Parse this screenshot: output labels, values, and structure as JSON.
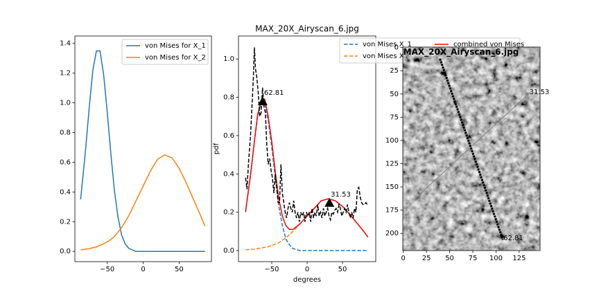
{
  "chart_data": [
    {
      "type": "line",
      "x": [
        -87,
        -80,
        -75,
        -70,
        -65,
        -60,
        -55,
        -50,
        -45,
        -40,
        -35,
        -30,
        -25,
        -20,
        -10,
        0,
        10,
        20,
        30,
        40,
        50,
        60,
        70,
        80,
        86
      ],
      "series": [
        {
          "name": "von Mises for X_1",
          "color": "#1f77b4",
          "values": [
            0.35,
            0.69,
            0.97,
            1.22,
            1.35,
            1.35,
            1.19,
            0.94,
            0.66,
            0.41,
            0.23,
            0.11,
            0.05,
            0.02,
            0,
            0,
            0,
            0,
            0,
            0,
            0,
            0,
            0,
            0,
            0
          ]
        },
        {
          "name": "von Mises for X_2",
          "color": "#ff7f0e",
          "values": [
            0.01,
            0.015,
            0.018,
            0.025,
            0.03,
            0.04,
            0.05,
            0.065,
            0.08,
            0.1,
            0.13,
            0.16,
            0.2,
            0.24,
            0.34,
            0.44,
            0.54,
            0.62,
            0.65,
            0.63,
            0.56,
            0.46,
            0.35,
            0.24,
            0.17
          ]
        }
      ],
      "xlim": [
        -95,
        95
      ],
      "ylim": [
        -0.069,
        1.45
      ],
      "xticks": [
        {
          "value": -50,
          "label": "−50"
        },
        0,
        50
      ],
      "yticks": [
        {
          "value": 0,
          "label": "0.0"
        },
        {
          "value": 0.2,
          "label": "0.2"
        },
        {
          "value": 0.4,
          "label": "0.4"
        },
        {
          "value": 0.6,
          "label": "0.6"
        },
        {
          "value": 0.8,
          "label": "0.8"
        },
        {
          "value": 1.0,
          "label": "1.0"
        },
        {
          "value": 1.2,
          "label": "1.2"
        },
        {
          "value": 1.4,
          "label": "1.4"
        }
      ],
      "legend": "upper right"
    },
    {
      "type": "line",
      "title": "MAX_20X_Airyscan_6.jpg",
      "xlabel": "degrees",
      "ylabel": "pdf",
      "x": [
        -87,
        -80,
        -75,
        -70,
        -65,
        -60,
        -55,
        -50,
        -45,
        -40,
        -35,
        -30,
        -25,
        -20,
        -10,
        0,
        10,
        20,
        30,
        40,
        50,
        60,
        70,
        80,
        86
      ],
      "series": [
        {
          "name": "von Mises X_1",
          "color": "#1f77b4",
          "linestyle": "dashed",
          "values": [
            0.2,
            0.39,
            0.55,
            0.7,
            0.77,
            0.77,
            0.68,
            0.54,
            0.38,
            0.23,
            0.13,
            0.06,
            0.03,
            0.01,
            0,
            0,
            0,
            0,
            0,
            0,
            0,
            0,
            0,
            0,
            0
          ]
        },
        {
          "name": "von Mises X_2",
          "color": "#ff7f0e",
          "linestyle": "dashed",
          "values": [
            0.004,
            0.006,
            0.007,
            0.01,
            0.012,
            0.017,
            0.02,
            0.027,
            0.033,
            0.04,
            0.054,
            0.066,
            0.083,
            0.1,
            0.14,
            0.18,
            0.22,
            0.26,
            0.27,
            0.26,
            0.23,
            0.19,
            0.145,
            0.1,
            0.07
          ]
        },
        {
          "name": "combined von Mises",
          "color": "#ff0000",
          "linestyle": "solid",
          "values": [
            0.204,
            0.396,
            0.557,
            0.71,
            0.78,
            0.79,
            0.7,
            0.57,
            0.41,
            0.27,
            0.18,
            0.13,
            0.11,
            0.11,
            0.14,
            0.18,
            0.22,
            0.26,
            0.27,
            0.26,
            0.23,
            0.19,
            0.145,
            0.1,
            0.07
          ]
        },
        {
          "color": "#000000",
          "linestyle": "dashed",
          "x": [
            -87,
            -85,
            -83,
            -80,
            -78,
            -76,
            -74.5,
            -73,
            -71,
            -69,
            -67,
            -65,
            -63,
            -61,
            -59,
            -57,
            -55,
            -53,
            -51,
            -49,
            -47,
            -45,
            -43,
            -41,
            -39,
            -37,
            -35,
            -33,
            -31,
            -29,
            -27,
            -25,
            -23,
            -21,
            -19,
            -17,
            -15,
            -13,
            -11,
            -9,
            -7,
            -5,
            -3,
            -1,
            1,
            3,
            5,
            7,
            9,
            11,
            13,
            15,
            17,
            19,
            21,
            23,
            25,
            27,
            29,
            31,
            33,
            35,
            37,
            39,
            41,
            43,
            45,
            47,
            49,
            51,
            53,
            55,
            57,
            59,
            61,
            63,
            65,
            67,
            69,
            71,
            73,
            75,
            77,
            79,
            81,
            83,
            85,
            87
          ],
          "values": [
            0.38,
            0.32,
            0.45,
            0.6,
            0.75,
            0.9,
            1.06,
            0.95,
            0.9,
            0.82,
            0.7,
            0.72,
            0.85,
            0.75,
            0.72,
            0.55,
            0.45,
            0.48,
            0.42,
            0.38,
            0.3,
            0.4,
            0.33,
            0.25,
            0.25,
            0.45,
            0.3,
            0.25,
            0.2,
            0.17,
            0.22,
            0.25,
            0.22,
            0.2,
            0.26,
            0.2,
            0.17,
            0.2,
            0.15,
            0.2,
            0.18,
            0.2,
            0.15,
            0.2,
            0.18,
            0.2,
            0.15,
            0.22,
            0.17,
            0.2,
            0.18,
            0.24,
            0.18,
            0.2,
            0.17,
            0.22,
            0.18,
            0.2,
            0.22,
            0.18,
            0.16,
            0.2,
            0.19,
            0.21,
            0.22,
            0.2,
            0.24,
            0.22,
            0.18,
            0.2,
            0.22,
            0.2,
            0.24,
            0.2,
            0.17,
            0.2,
            0.17,
            0.22,
            0.2,
            0.32,
            0.33,
            0.28,
            0.25,
            0.24,
            0.24,
            0.25,
            0.24,
            0.24
          ]
        }
      ],
      "markers": [
        {
          "x": -62.81,
          "y": 0.78,
          "label": "62.81"
        },
        {
          "x": 31.53,
          "y": 0.25,
          "label": "31.53"
        }
      ],
      "xlim": [
        -97,
        97
      ],
      "ylim": [
        -0.058,
        1.12
      ],
      "xticks": [
        {
          "value": -50,
          "label": "−50"
        },
        0,
        50
      ],
      "yticks": [
        {
          "value": 0,
          "label": "0.0"
        },
        {
          "value": 0.2,
          "label": "0.2"
        },
        {
          "value": 0.4,
          "label": "0.4"
        },
        {
          "value": 0.6,
          "label": "0.6"
        },
        {
          "value": 0.8,
          "label": "0.8"
        },
        {
          "value": 1.0,
          "label": "1.0"
        }
      ],
      "legend": "upper center"
    },
    {
      "type": "image",
      "xlim": [
        -0.5,
        147.5
      ],
      "ylim": [
        218.5,
        -0.5
      ],
      "xticks": [
        0,
        25,
        50,
        75,
        100,
        125
      ],
      "yticks": [
        0,
        25,
        50,
        75,
        100,
        125,
        150,
        175,
        200
      ],
      "lines": [
        {
          "x": [
            39.5,
            107.5
          ],
          "y": [
            12,
            207
          ],
          "color": "#000000",
          "linewidth": 3
        },
        {
          "x": [
            13.4,
            136.6
          ],
          "y": [
            162,
            48.5
          ],
          "color": "#808080",
          "linewidth": 1
        }
      ],
      "annotations": [
        {
          "text": "MAX_20X_Airyscan_6.jpg",
          "x": 0,
          "y": 5,
          "color": "#9a9a9a"
        },
        {
          "text": "62.81",
          "x": 108,
          "y": 205,
          "color": "#008000"
        },
        {
          "text": "31.53",
          "x": 136,
          "y": 48,
          "color": "#008000"
        }
      ]
    }
  ]
}
